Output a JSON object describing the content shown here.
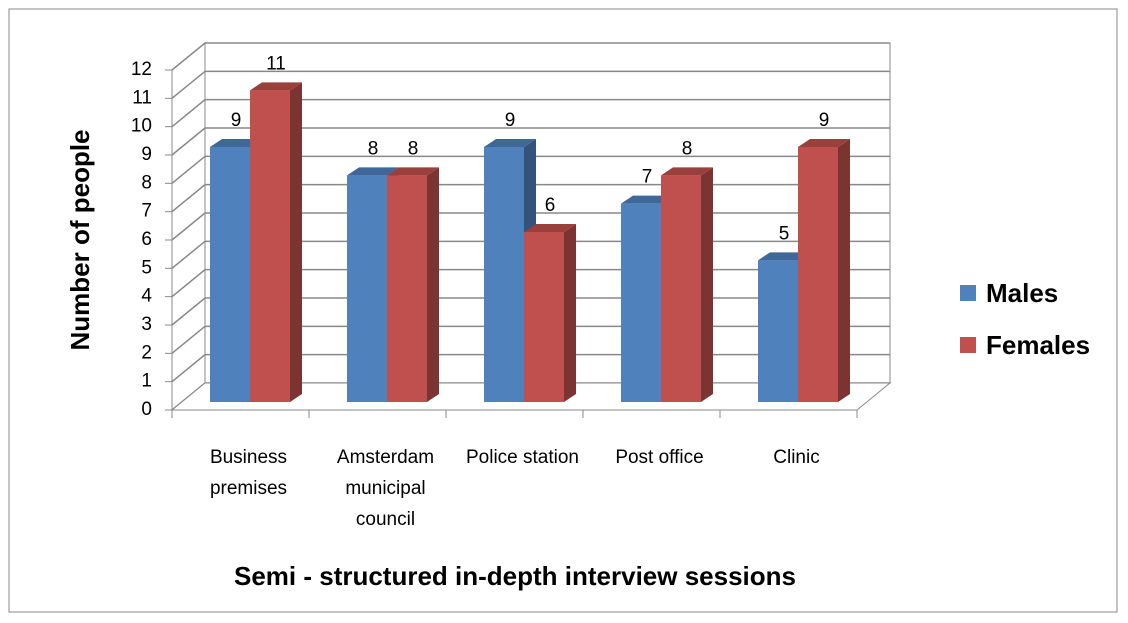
{
  "chart_data": {
    "type": "bar3d",
    "x_label": "Semi - structured in-depth interview sessions",
    "y_label": "Number of people",
    "categories": [
      "Business premises",
      "Amsterdam municipal council",
      "Police station",
      "Post office",
      "Clinic"
    ],
    "series": [
      {
        "name": "Males",
        "color": "#4f81bd",
        "values": [
          9,
          8,
          9,
          7,
          5
        ]
      },
      {
        "name": "Females",
        "color": "#c0504d",
        "values": [
          11,
          8,
          6,
          8,
          9
        ]
      }
    ],
    "ylim": [
      0,
      12
    ],
    "yticks": [
      0,
      1,
      2,
      3,
      4,
      5,
      6,
      7,
      8,
      9,
      10,
      11,
      12
    ],
    "grid": true,
    "legend": "right"
  }
}
